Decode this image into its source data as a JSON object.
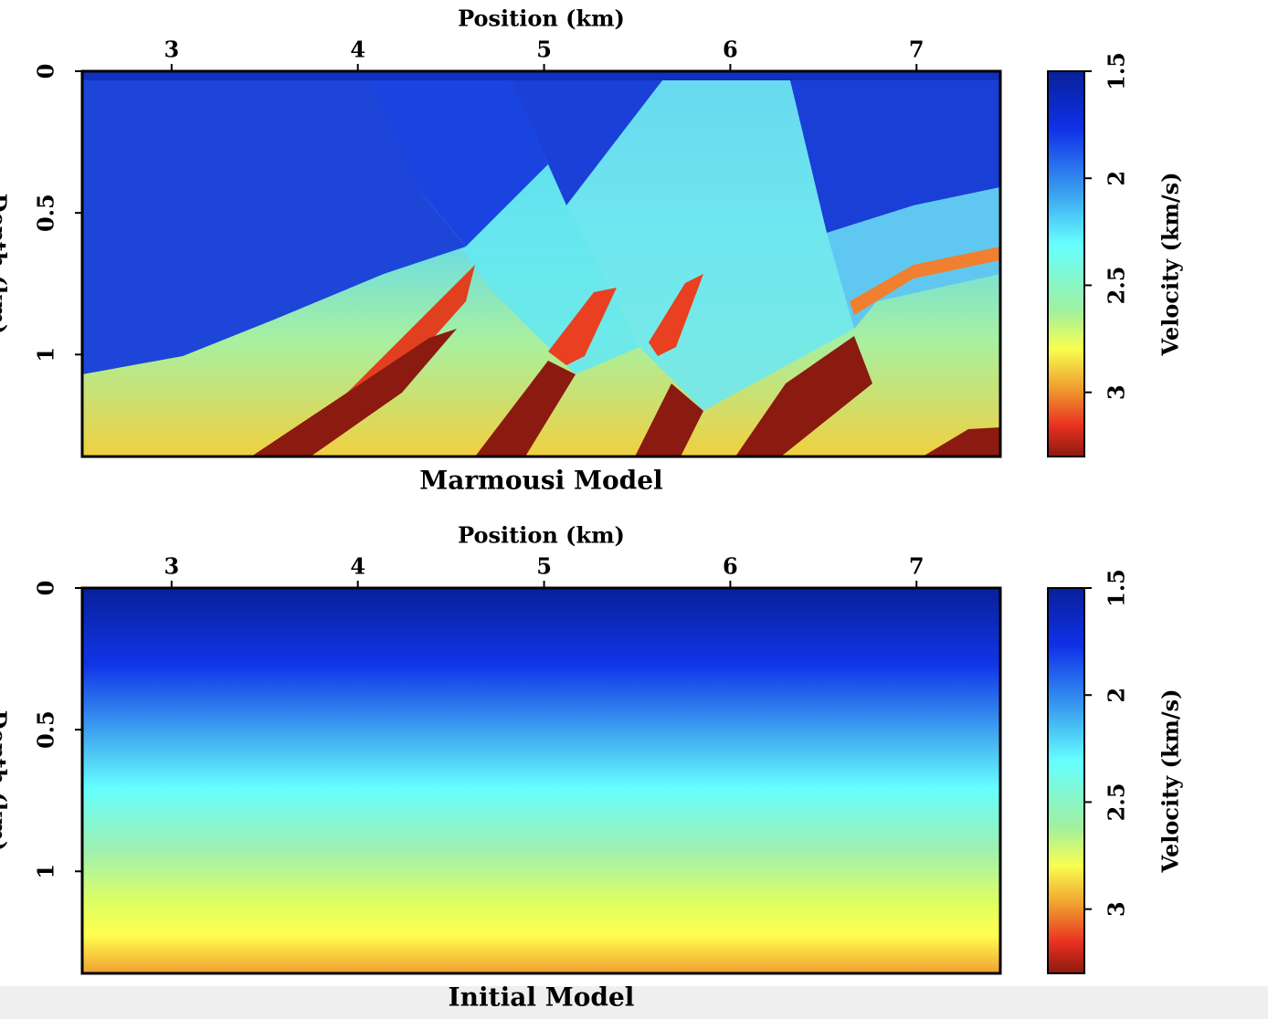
{
  "chart_data": [
    {
      "type": "heatmap",
      "title": "Marmousi Model",
      "xlabel": "Position (km)",
      "ylabel": "Depth (km)",
      "xlim": [
        2.52,
        7.45
      ],
      "xticks": [
        3,
        4,
        5,
        6,
        7
      ],
      "ylim": [
        1.36,
        0
      ],
      "yticks": [
        0,
        0.5,
        1
      ],
      "colorbar_label": "Velocity (km/s)",
      "clim": [
        3.3,
        1.5
      ],
      "cticks": [
        1.5,
        2,
        2.5,
        3
      ]
    },
    {
      "type": "heatmap",
      "title": "Initial Model",
      "xlabel": "Position (km)",
      "ylabel": "Depth (km)",
      "xlim": [
        2.52,
        7.45
      ],
      "xticks": [
        3,
        4,
        5,
        6,
        7
      ],
      "ylim": [
        1.36,
        0
      ],
      "yticks": [
        0,
        0.5,
        1
      ],
      "colorbar_label": "Velocity (km/s)",
      "clim": [
        3.3,
        1.5
      ],
      "cticks": [
        1.5,
        2,
        2.5,
        3
      ]
    }
  ]
}
